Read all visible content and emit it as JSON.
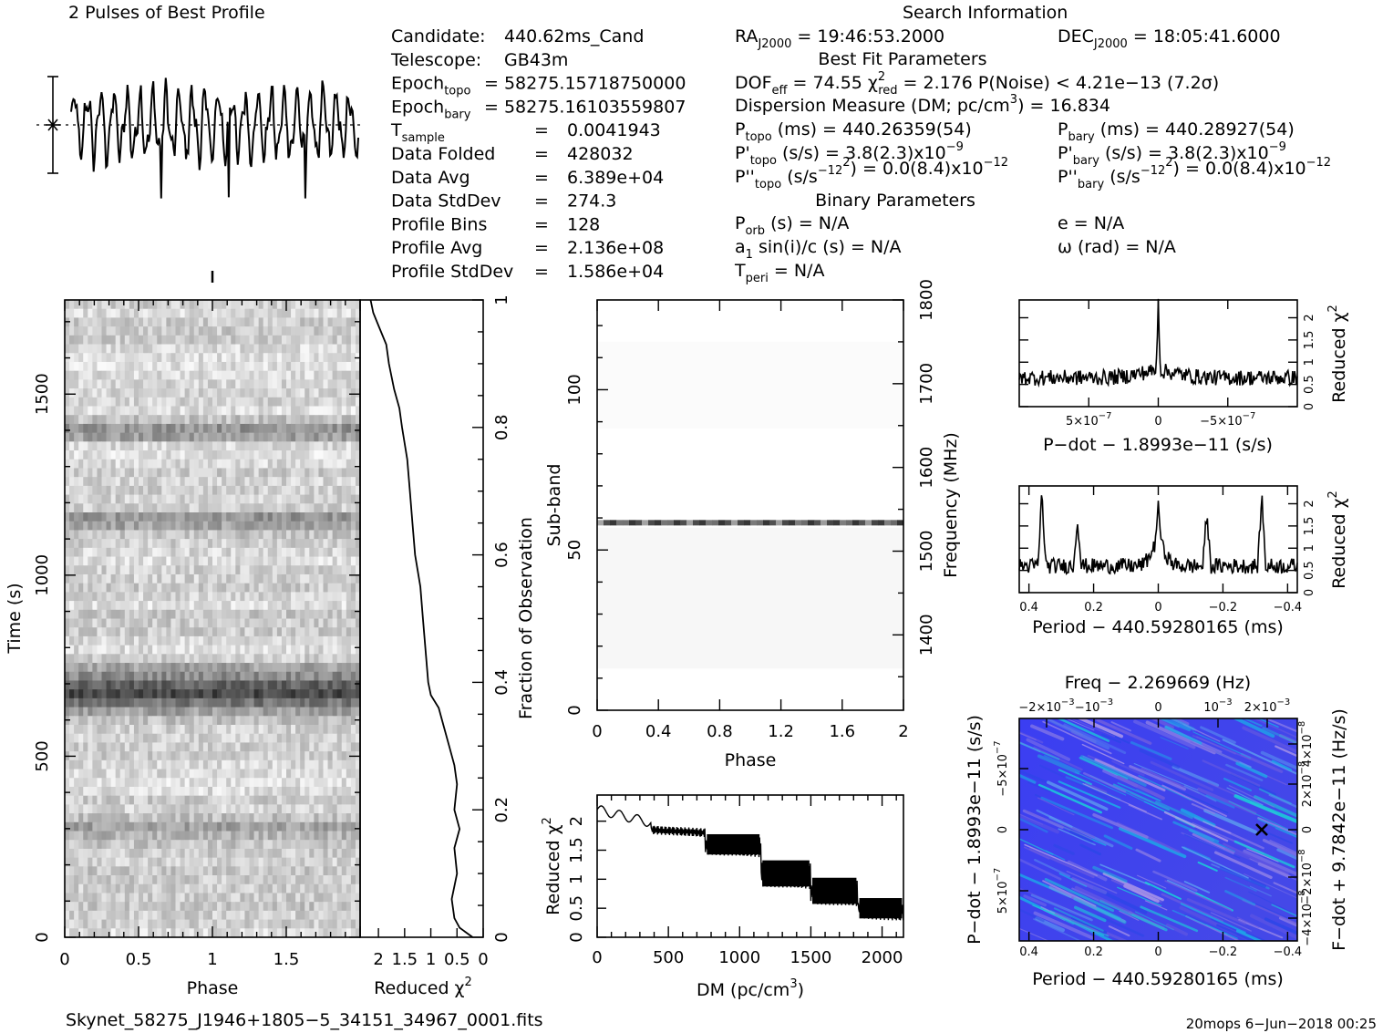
{
  "profile": {
    "title": "2 Pulses of Best Profile"
  },
  "search": {
    "title": "Search Information",
    "left": [
      {
        "label": "Candidate:",
        "value": "440.62ms_Cand"
      },
      {
        "label": "Telescope:",
        "value": "GB43m"
      },
      {
        "label": "Epoch",
        "sub": "topo",
        "value": "= 58275.15718750000"
      },
      {
        "label": "Epoch",
        "sub": "bary",
        "value": "= 58275.16103559807"
      },
      {
        "label": "T",
        "sub": "sample",
        "value": "0.0041943"
      },
      {
        "label": "Data Folded",
        "value": "428032"
      },
      {
        "label": "Data Avg",
        "value": "6.389e+04"
      },
      {
        "label": "Data StdDev",
        "value": "274.3"
      },
      {
        "label": "Profile Bins",
        "value": "128"
      },
      {
        "label": "Profile Avg",
        "value": "2.136e+08"
      },
      {
        "label": "Profile StdDev",
        "value": "1.586e+04"
      }
    ],
    "ra": {
      "label": "RA",
      "sub": "J2000",
      "value": "= 19:46:53.2000"
    },
    "dec": {
      "label": "DEC",
      "sub": "J2000",
      "value": "= 18:05:41.6000"
    },
    "best_fit_title": "Best Fit Parameters",
    "dof_line": {
      "dof": "DOF",
      "dof_sub": "eff",
      "dof_val": "= 74.55",
      "chi": "χ",
      "chi_sup": "2",
      "chi_sub": "red",
      "chi_val": "= 2.176",
      "pnoise": "P(Noise) < 4.21e−13   (7.2σ)"
    },
    "dm_line": {
      "text": "Dispersion Measure (DM; pc/cm",
      "sup": "3",
      "tail": ") = 16.834"
    },
    "ptopo": {
      "label": "P",
      "sub": "topo",
      "value": "(ms)  =   440.26359(54)"
    },
    "pbary": {
      "label": "P",
      "sub": "bary",
      "value": "(ms)  =   440.28927(54)"
    },
    "pdtopo": {
      "label": "P'",
      "sub": "topo",
      "value": "(s/s)  =   3.8(2.3)x10",
      "exp": "−9"
    },
    "pdbary": {
      "label": "P'",
      "sub": "bary",
      "value": "(s/s)  =   3.8(2.3)x10",
      "exp": "−9"
    },
    "pddtopo": {
      "label": "P''",
      "sub": "topo",
      "value": "(s/s",
      "sup": "2",
      "tail": ") = 0.0(8.4)x10",
      "exp": "−12"
    },
    "pddbary": {
      "label": "P''",
      "sub": "bary",
      "value": "(s/s",
      "sup": "2",
      "tail": ") = 0.0(8.4)x10",
      "exp": "−12"
    },
    "binary_title": "Binary Parameters",
    "porb": {
      "label": "P",
      "sub": "orb",
      "value": "(s) = N/A"
    },
    "e": "e = N/A",
    "a1": {
      "label": "a",
      "sub": "1",
      "value": "sin(i)/c (s) = N/A"
    },
    "omega": "ω (rad) = N/A",
    "tperi": {
      "label": "T",
      "sub": "peri",
      "value": "= N/A"
    },
    "eq": "="
  },
  "footer": {
    "filename": "Skynet_58275_J1946+1805−5_34151_34967_0001.fits",
    "stamp": "20mops   6−Jun−2018 00:25"
  },
  "chart_data": [
    {
      "type": "line",
      "name": "pulse-profile",
      "title": "2 Pulses of Best Profile",
      "x_range": [
        0,
        2
      ],
      "n_bins": 128,
      "pulses": 2
    },
    {
      "type": "heatmap",
      "name": "time-phase",
      "xlabel": "Phase",
      "ylabel": "Time (s)",
      "xlim": [
        0,
        2
      ],
      "ylim": [
        0,
        1760
      ],
      "xticks": [
        "0",
        "0.5",
        "1",
        "1.5"
      ],
      "yticks": [
        "0",
        "500",
        "1000",
        "1500"
      ],
      "yticks_val": [
        0,
        500,
        1000,
        1500
      ],
      "dark_bands_s": [
        [
          660,
          700
        ],
        [
          290,
          310
        ],
        [
          1130,
          1170
        ],
        [
          1380,
          1420
        ]
      ]
    },
    {
      "type": "line",
      "name": "chi2-vs-time",
      "xlabel": "Reduced χ",
      "xlabel_sup": "2",
      "ylabel": "Fraction of Observation",
      "xticks": [
        "2",
        "1.5",
        "1",
        "0.5",
        "0"
      ],
      "xticks_val": [
        2,
        1.5,
        1,
        0.5,
        0
      ],
      "yticks": [
        "0",
        "0.2",
        "0.4",
        "0.6",
        "0.8",
        "1"
      ],
      "yticks_val": [
        0,
        0.2,
        0.4,
        0.6,
        0.8,
        1
      ],
      "xlim": [
        2.35,
        0
      ],
      "points": [
        [
          0.2,
          0
        ],
        [
          0.45,
          0.015
        ],
        [
          0.55,
          0.03
        ],
        [
          0.6,
          0.06
        ],
        [
          0.5,
          0.1
        ],
        [
          0.55,
          0.14
        ],
        [
          0.45,
          0.17
        ],
        [
          0.55,
          0.2
        ],
        [
          0.5,
          0.24
        ],
        [
          0.55,
          0.27
        ],
        [
          0.65,
          0.3
        ],
        [
          0.75,
          0.33
        ],
        [
          0.85,
          0.36
        ],
        [
          1.0,
          0.38
        ],
        [
          1.05,
          0.4
        ],
        [
          1.1,
          0.45
        ],
        [
          1.15,
          0.5
        ],
        [
          1.2,
          0.55
        ],
        [
          1.3,
          0.6
        ],
        [
          1.35,
          0.65
        ],
        [
          1.4,
          0.7
        ],
        [
          1.45,
          0.75
        ],
        [
          1.55,
          0.8
        ],
        [
          1.6,
          0.83
        ],
        [
          1.7,
          0.86
        ],
        [
          1.8,
          0.9
        ],
        [
          1.85,
          0.93
        ],
        [
          2.0,
          0.96
        ],
        [
          2.1,
          0.98
        ],
        [
          2.15,
          1.0
        ]
      ]
    },
    {
      "type": "heatmap",
      "name": "subband-phase",
      "xlabel": "Phase",
      "ylabel": "Sub-band",
      "y2label": "Frequency (MHz)",
      "xlim": [
        0,
        2
      ],
      "ylim": [
        0,
        128
      ],
      "xticks": [
        "0",
        "0.4",
        "0.8",
        "1.2",
        "1.6",
        "2"
      ],
      "xticks_val": [
        0,
        0.4,
        0.8,
        1.2,
        1.6,
        2
      ],
      "yticks": [
        "0",
        "50",
        "100"
      ],
      "yticks_val": [
        0,
        50,
        100
      ],
      "y2ticks": [
        "1400",
        "1500",
        "1600",
        "1700",
        "1800"
      ],
      "y2ticks_val": [
        1400,
        1500,
        1600,
        1700,
        1800
      ],
      "y2lim": [
        1310,
        1800
      ],
      "bright_subband": 58.5
    },
    {
      "type": "line",
      "name": "chi2-vs-dm",
      "xlabel": "DM (pc/cm",
      "xlabel_sup": "3",
      "xlabel_tail": ")",
      "ylabel": "Reduced χ",
      "ylabel_sup": "2",
      "xlim": [
        0,
        2150
      ],
      "ylim": [
        0,
        2.45
      ],
      "xticks": [
        "0",
        "500",
        "1000",
        "1500",
        "2000"
      ],
      "xticks_val": [
        0,
        500,
        1000,
        1500,
        2000
      ],
      "yticks": [
        "0",
        "0.5",
        "1",
        "1.5",
        "2"
      ],
      "yticks_val": [
        0,
        0.5,
        1,
        1.5,
        2
      ]
    },
    {
      "type": "line",
      "name": "chi2-vs-pdot",
      "xlabel": "P−dot − 1.8993e−11 (s/s)",
      "ylabel": "Reduced χ",
      "ylabel_sup": "2",
      "xlim": [
        1e-06,
        -1e-06
      ],
      "ylim": [
        0,
        2.4
      ],
      "xticks": [
        "5×10",
        "0",
        "−5×10"
      ],
      "xticks_exp": [
        "−7",
        "",
        "−7"
      ],
      "xticks_val": [
        5e-07,
        0,
        -5e-07
      ],
      "yticks": [
        "0",
        "0.5",
        "1",
        "1.5",
        "2"
      ],
      "yticks_val": [
        0,
        0.5,
        1,
        1.5,
        2
      ],
      "peak_at": 0,
      "peak_value": 2.3,
      "baseline": 0.65
    },
    {
      "type": "line",
      "name": "chi2-vs-period",
      "xlabel": "Period − 440.59280165 (ms)",
      "ylabel": "Reduced χ",
      "ylabel_sup": "2",
      "xlim": [
        0.43,
        -0.43
      ],
      "ylim": [
        0,
        2.4
      ],
      "xticks": [
        "0.4",
        "0.2",
        "0",
        "−0.2",
        "−0.4"
      ],
      "xticks_val": [
        0.4,
        0.2,
        0,
        -0.2,
        -0.4
      ],
      "yticks": [
        "0",
        "0.5",
        "1",
        "1.5",
        "2"
      ],
      "yticks_val": [
        0,
        0.5,
        1,
        1.5,
        2
      ],
      "peaks": [
        [
          0.36,
          2.25
        ],
        [
          0.25,
          1.7
        ],
        [
          0.0,
          1.4
        ],
        [
          -0.15,
          1.8
        ],
        [
          -0.32,
          2.2
        ]
      ],
      "baseline": 0.6
    },
    {
      "type": "heatmap",
      "name": "period-pdot",
      "title": "Freq − 2.269669 (Hz)",
      "xlabel": "Period − 440.59280165 (ms)",
      "ylabel": "P−dot − 1.8993e−11 (s/s)",
      "y2label": "F−dot + 9.7842e−11 (Hz/s)",
      "xticks": [
        "0.4",
        "0.2",
        "0",
        "−0.2",
        "−0.4"
      ],
      "xticks_val": [
        0.4,
        0.2,
        0,
        -0.2,
        -0.4
      ],
      "xlim": [
        0.43,
        -0.43
      ],
      "top_ticks": [
        "−2×10",
        "−10",
        "0",
        "10",
        "2×10"
      ],
      "top_ticks_exp": [
        "−3",
        "−3",
        "",
        "−3",
        "−3"
      ],
      "yticks": [
        "−5×10",
        "0",
        "5×10"
      ],
      "yticks_exp": [
        "−7",
        "",
        "−7"
      ],
      "y2ticks": [
        "−4×10",
        "−2×10",
        "0",
        "2×10",
        "4×10"
      ],
      "y2ticks_exp": [
        "−8",
        "−8",
        "",
        "−8",
        "−8"
      ],
      "best_marker": [
        -0.32,
        0
      ]
    }
  ]
}
